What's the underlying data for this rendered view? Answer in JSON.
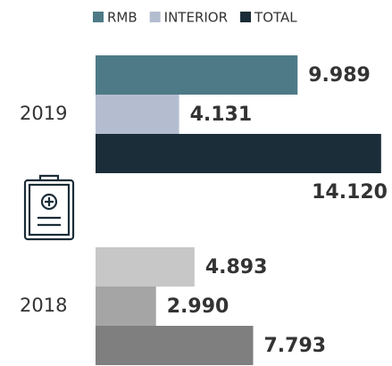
{
  "chart_data": {
    "type": "bar",
    "orientation": "horizontal",
    "categories": [
      "2019",
      "2018"
    ],
    "series": [
      {
        "name": "RMB",
        "color": "#4d7a86",
        "colors": [
          "#4d7a86",
          "#c7c7c7"
        ],
        "values": [
          9.989,
          4.893
        ]
      },
      {
        "name": "INTERIOR",
        "color": "#b4bdd0",
        "colors": [
          "#b4bdd0",
          "#a5a5a5"
        ],
        "values": [
          4.131,
          2.99
        ],
        "value_labels": [
          "4.131",
          "2.990"
        ]
      },
      {
        "name": "TOTAL",
        "color": "#1b2d38",
        "colors": [
          "#1b2d38",
          "#7f7f7f"
        ],
        "values": [
          14.12,
          7.793
        ],
        "value_labels": [
          "14.120",
          "7.793"
        ]
      }
    ],
    "legend": "top"
  }
}
